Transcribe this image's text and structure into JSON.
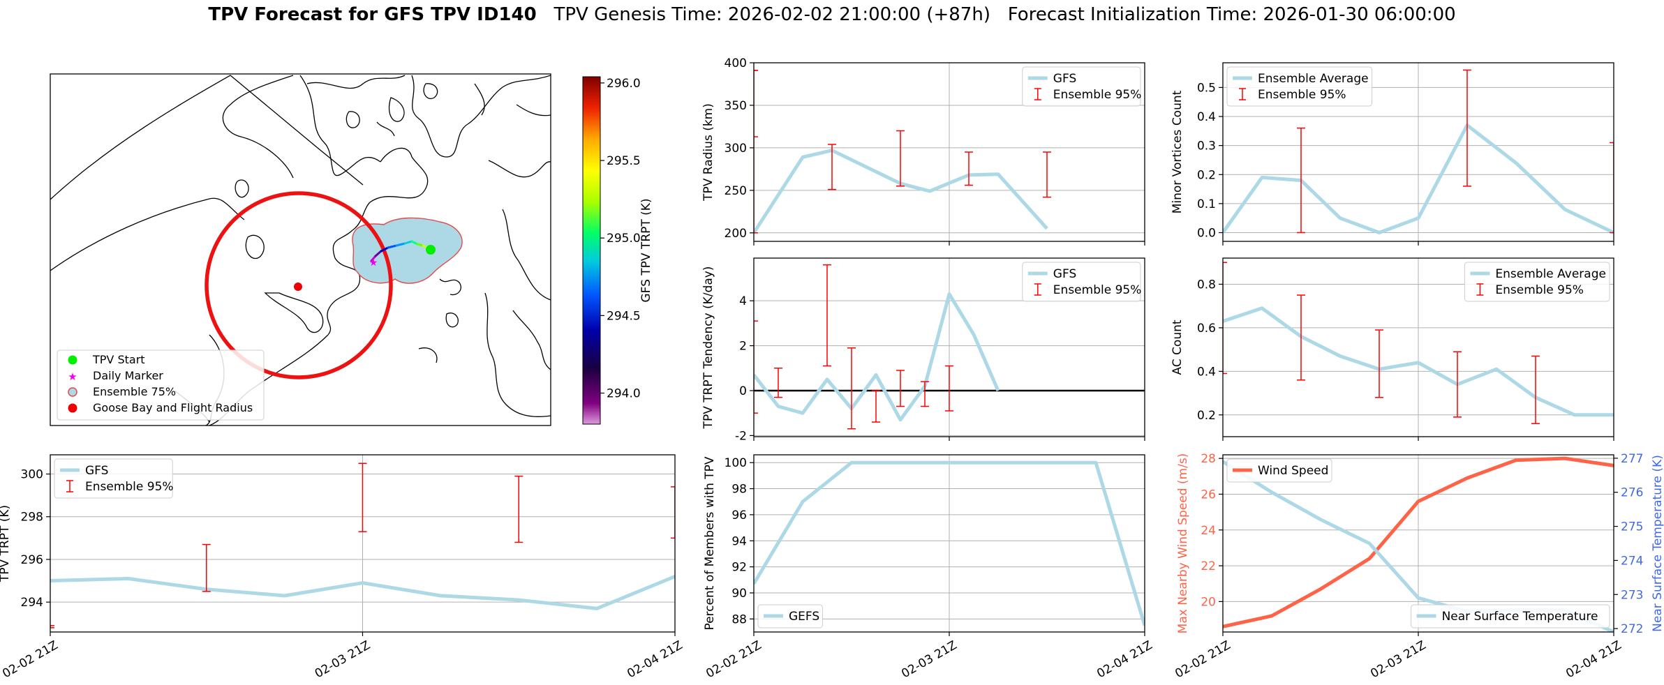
{
  "title": {
    "bold": "TPV Forecast for GFS TPV ID140",
    "genesis": "TPV Genesis Time: 2026-02-02 21:00:00 (+87h)",
    "init": "Forecast Initialization Time: 2026-01-30 06:00:00"
  },
  "colors": {
    "gfs": "#add8e6",
    "ens": "#ff0000",
    "wind": "#ff6347",
    "temp_axis": "#4169e1"
  },
  "time_ticks": [
    "02-02 21Z",
    "02-03 21Z",
    "02-04 21Z"
  ],
  "map": {
    "colorbar": {
      "label": "GFS TPV TRPT (K)",
      "ticks": [
        "294.0",
        "294.5",
        "295.0",
        "295.5",
        "296.0"
      ],
      "range": [
        293.8,
        296.04
      ]
    },
    "legend": [
      "TPV Start",
      "Daily Marker",
      "Ensemble 75%",
      "Goose Bay and Flight Radius"
    ]
  },
  "chart_data": [
    {
      "id": "radius",
      "type": "line",
      "ylabel": "TPV Radius (km)",
      "ylim": [
        190,
        400
      ],
      "yticks": [
        200,
        250,
        300,
        350,
        400
      ],
      "grid": true,
      "legend_position": "upper right",
      "series": [
        {
          "name": "GFS",
          "x": [
            0,
            0.25,
            0.4,
            0.75,
            0.9,
            1.1,
            1.25,
            1.5
          ],
          "values": [
            200,
            289,
            297,
            258,
            249,
            268,
            269,
            205
          ]
        }
      ],
      "errorbars": {
        "name": "Ensemble 95%",
        "x": [
          0,
          0.4,
          0.75,
          1.1,
          1.5
        ],
        "low": [
          200,
          251,
          255,
          256,
          242
        ],
        "high": [
          391,
          304,
          320,
          295,
          295
        ],
        "partial_left": [
          391,
          313
        ]
      }
    },
    {
      "id": "minor",
      "type": "line",
      "ylabel": "Minor Vortices Count",
      "ylim": [
        -0.03,
        0.585
      ],
      "yticks": [
        0.0,
        0.1,
        0.2,
        0.3,
        0.4,
        0.5
      ],
      "grid": true,
      "legend_position": "upper left",
      "series": [
        {
          "name": "Ensemble Average",
          "x": [
            0,
            0.2,
            0.4,
            0.6,
            0.8,
            1.0,
            1.25,
            1.5,
            1.75,
            2.0
          ],
          "values": [
            0.0,
            0.19,
            0.18,
            0.05,
            0.0,
            0.05,
            0.37,
            0.24,
            0.08,
            0.0
          ]
        }
      ],
      "errorbars": {
        "name": "Ensemble 95%",
        "x": [
          0.4,
          1.25,
          2.0
        ],
        "low": [
          0.0,
          0.16,
          0.0
        ],
        "high": [
          0.36,
          0.56,
          0.31
        ]
      }
    },
    {
      "id": "tendency",
      "type": "line",
      "ylabel": "TPV TRPT Tendency (K/day)",
      "ylim": [
        -2.05,
        5.9
      ],
      "yticks": [
        -2,
        0,
        2,
        4
      ],
      "grid": true,
      "legend_position": "upper right",
      "series": [
        {
          "name": "GFS",
          "x": [
            0,
            0.125,
            0.25,
            0.375,
            0.5,
            0.625,
            0.75,
            0.875,
            1.0,
            1.125,
            1.25
          ],
          "values": [
            0.7,
            -0.7,
            -1.0,
            0.5,
            -0.8,
            0.7,
            -1.3,
            0.2,
            4.3,
            2.5,
            0.0
          ]
        }
      ],
      "errorbars": {
        "name": "Ensemble 95%",
        "x": [
          0,
          0.125,
          0.375,
          0.5,
          0.625,
          0.75,
          0.875,
          1.0
        ],
        "low": [
          -1.0,
          -0.3,
          1.1,
          -1.7,
          -1.4,
          -0.7,
          -0.7,
          -0.9
        ],
        "high": [
          3.1,
          1.0,
          5.6,
          1.9,
          0.0,
          0.9,
          0.4,
          1.1
        ]
      }
    },
    {
      "id": "ac",
      "type": "line",
      "ylabel": "AC Count",
      "ylim": [
        0.1,
        0.92
      ],
      "yticks": [
        0.2,
        0.4,
        0.6,
        0.8
      ],
      "grid": true,
      "legend_position": "upper right",
      "series": [
        {
          "name": "Ensemble Average",
          "x": [
            0,
            0.2,
            0.4,
            0.6,
            0.8,
            1.0,
            1.2,
            1.4,
            1.6,
            1.8,
            2.0
          ],
          "values": [
            0.63,
            0.69,
            0.56,
            0.47,
            0.41,
            0.44,
            0.34,
            0.41,
            0.28,
            0.2,
            0.2
          ]
        }
      ],
      "errorbars": {
        "name": "Ensemble 95%",
        "x": [
          0,
          0.4,
          0.8,
          1.2,
          1.6
        ],
        "low": [
          0.39,
          0.36,
          0.28,
          0.19,
          0.16
        ],
        "high": [
          0.9,
          0.75,
          0.59,
          0.49,
          0.47
        ]
      }
    },
    {
      "id": "trpt",
      "type": "line",
      "ylabel": "TPV TRPT (K)",
      "ylim": [
        292.6,
        300.9
      ],
      "yticks": [
        294,
        296,
        298,
        300
      ],
      "grid": true,
      "legend_position": "upper left",
      "series": [
        {
          "name": "GFS",
          "x": [
            0,
            0.25,
            0.5,
            0.75,
            1.0,
            1.25,
            1.5,
            1.75,
            2.0
          ],
          "values": [
            295.0,
            295.1,
            294.6,
            294.3,
            294.9,
            294.3,
            294.1,
            293.7,
            295.2
          ]
        }
      ],
      "errorbars": {
        "name": "Ensemble 95%",
        "x": [
          0,
          0.5,
          1.0,
          1.5,
          2.0
        ],
        "low": [
          292.8,
          294.5,
          297.3,
          296.8,
          297.0
        ],
        "high": [
          292.9,
          296.7,
          300.5,
          299.9,
          299.4
        ]
      }
    },
    {
      "id": "percent",
      "type": "line",
      "ylabel": "Percent of Members with TPV",
      "ylim": [
        87,
        100.6
      ],
      "yticks": [
        88,
        90,
        92,
        94,
        96,
        98,
        100
      ],
      "grid": true,
      "legend_position": "lower left",
      "series": [
        {
          "name": "GEFS",
          "x": [
            0,
            0.25,
            0.5,
            0.75,
            1.0,
            1.25,
            1.5,
            1.75,
            2.0
          ],
          "values": [
            90.7,
            97.0,
            100,
            100,
            100,
            100,
            100,
            100,
            87.5
          ]
        }
      ]
    },
    {
      "id": "wind",
      "type": "line",
      "ylabel": "Max Nearby Wind Speed (m/s)",
      "ylabel_right": "Near Surface Temperature (K)",
      "ylim": [
        18.3,
        28.2
      ],
      "ylim_right": [
        271.9,
        277.1
      ],
      "yticks": [
        20,
        22,
        24,
        26,
        28
      ],
      "yticks_right": [
        272,
        273,
        274,
        275,
        276,
        277
      ],
      "grid": true,
      "series": [
        {
          "name": "Wind Speed",
          "axis": "left",
          "legend_position": "upper left",
          "x": [
            0,
            0.25,
            0.5,
            0.75,
            1.0,
            1.25,
            1.5,
            1.75,
            2.0
          ],
          "values": [
            18.6,
            19.2,
            20.7,
            22.4,
            25.6,
            26.9,
            27.9,
            28.0,
            27.6
          ]
        },
        {
          "name": "Near Surface Temperature",
          "axis": "right",
          "legend_position": "lower right",
          "x": [
            0,
            0.25,
            0.5,
            0.75,
            1.0,
            1.25,
            1.5,
            1.75,
            2.0
          ],
          "values": [
            276.9,
            276.0,
            275.2,
            274.5,
            272.9,
            272.5,
            272.55,
            272.55,
            271.9
          ]
        }
      ]
    }
  ]
}
